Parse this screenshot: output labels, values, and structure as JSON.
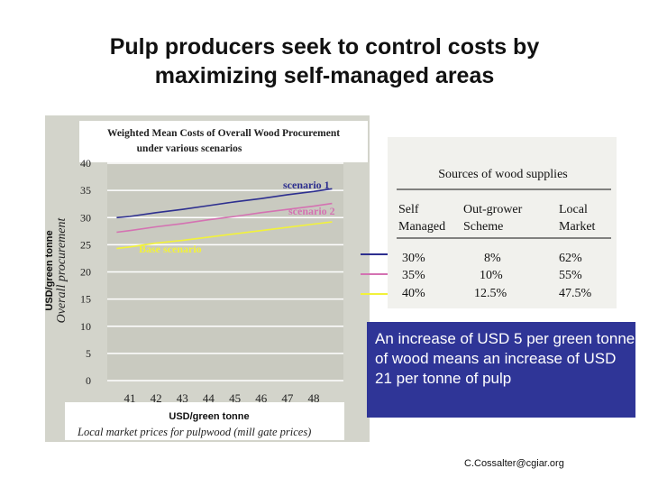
{
  "slide": {
    "title_line1": "Pulp producers seek to control costs by",
    "title_line2": "maximizing self-managed areas",
    "callout_text": "An increase of USD 5 per green tonne of wood means an increase of USD 21 per tonne of pulp",
    "email": "C.Cossalter@cgiar.org"
  },
  "colors": {
    "panel_bg": "#d3d4cb",
    "plot_bg": "#c9cac0",
    "scenario1": "#2d2f8f",
    "scenario2": "#d472b2",
    "base": "#f2f23a",
    "callout_bg": "#2f3597"
  },
  "chart_data": {
    "type": "line",
    "title_line1": "Weighted Mean Costs of Overall Wood Procurement",
    "title_line2": "under various scenarios",
    "xlabel": "USD/green tonne",
    "x_caption": "Local market prices for pulpwood (mill gate prices)",
    "ylabel": "USD/green tonne",
    "ylabel2": "Overall  procurement",
    "categories": [
      41,
      42,
      43,
      44,
      45,
      46,
      47,
      48
    ],
    "ylim": [
      0,
      40
    ],
    "yticks": [
      0,
      5,
      10,
      15,
      20,
      25,
      30,
      35,
      40
    ],
    "grid": true,
    "series": [
      {
        "name": "scenario 1",
        "x": [
          40.5,
          41,
          42,
          43,
          44,
          45,
          46,
          47,
          48,
          48.7
        ],
        "values": [
          30.0,
          30.2,
          30.9,
          31.5,
          32.2,
          32.9,
          33.5,
          34.2,
          34.8,
          35.3
        ]
      },
      {
        "name": "scenario 2",
        "x": [
          40.5,
          41,
          42,
          43,
          44,
          45,
          46,
          47,
          48,
          48.7
        ],
        "values": [
          27.3,
          27.6,
          28.3,
          28.9,
          29.6,
          30.2,
          30.9,
          31.5,
          32.1,
          32.6
        ]
      },
      {
        "name": "Base scenario",
        "x": [
          40.5,
          41,
          42,
          43,
          44,
          45,
          46,
          47,
          48,
          48.7
        ],
        "values": [
          24.3,
          24.6,
          25.3,
          25.8,
          26.4,
          27.0,
          27.6,
          28.2,
          28.8,
          29.2
        ]
      }
    ]
  },
  "sources_table": {
    "title": "Sources of wood supplies",
    "headers": [
      {
        "line1": "Self",
        "line2": "Managed"
      },
      {
        "line1": "Out-grower",
        "line2": "Scheme"
      },
      {
        "line1": "Local",
        "line2": "Market"
      }
    ],
    "rows": [
      {
        "self": "30%",
        "outgrower": "8%",
        "local": "62%",
        "color": "#2d2f8f"
      },
      {
        "self": "35%",
        "outgrower": "10%",
        "local": "55%",
        "color": "#d472b2"
      },
      {
        "self": "40%",
        "outgrower": "12.5%",
        "local": "47.5%",
        "color": "#f2f23a"
      }
    ]
  }
}
